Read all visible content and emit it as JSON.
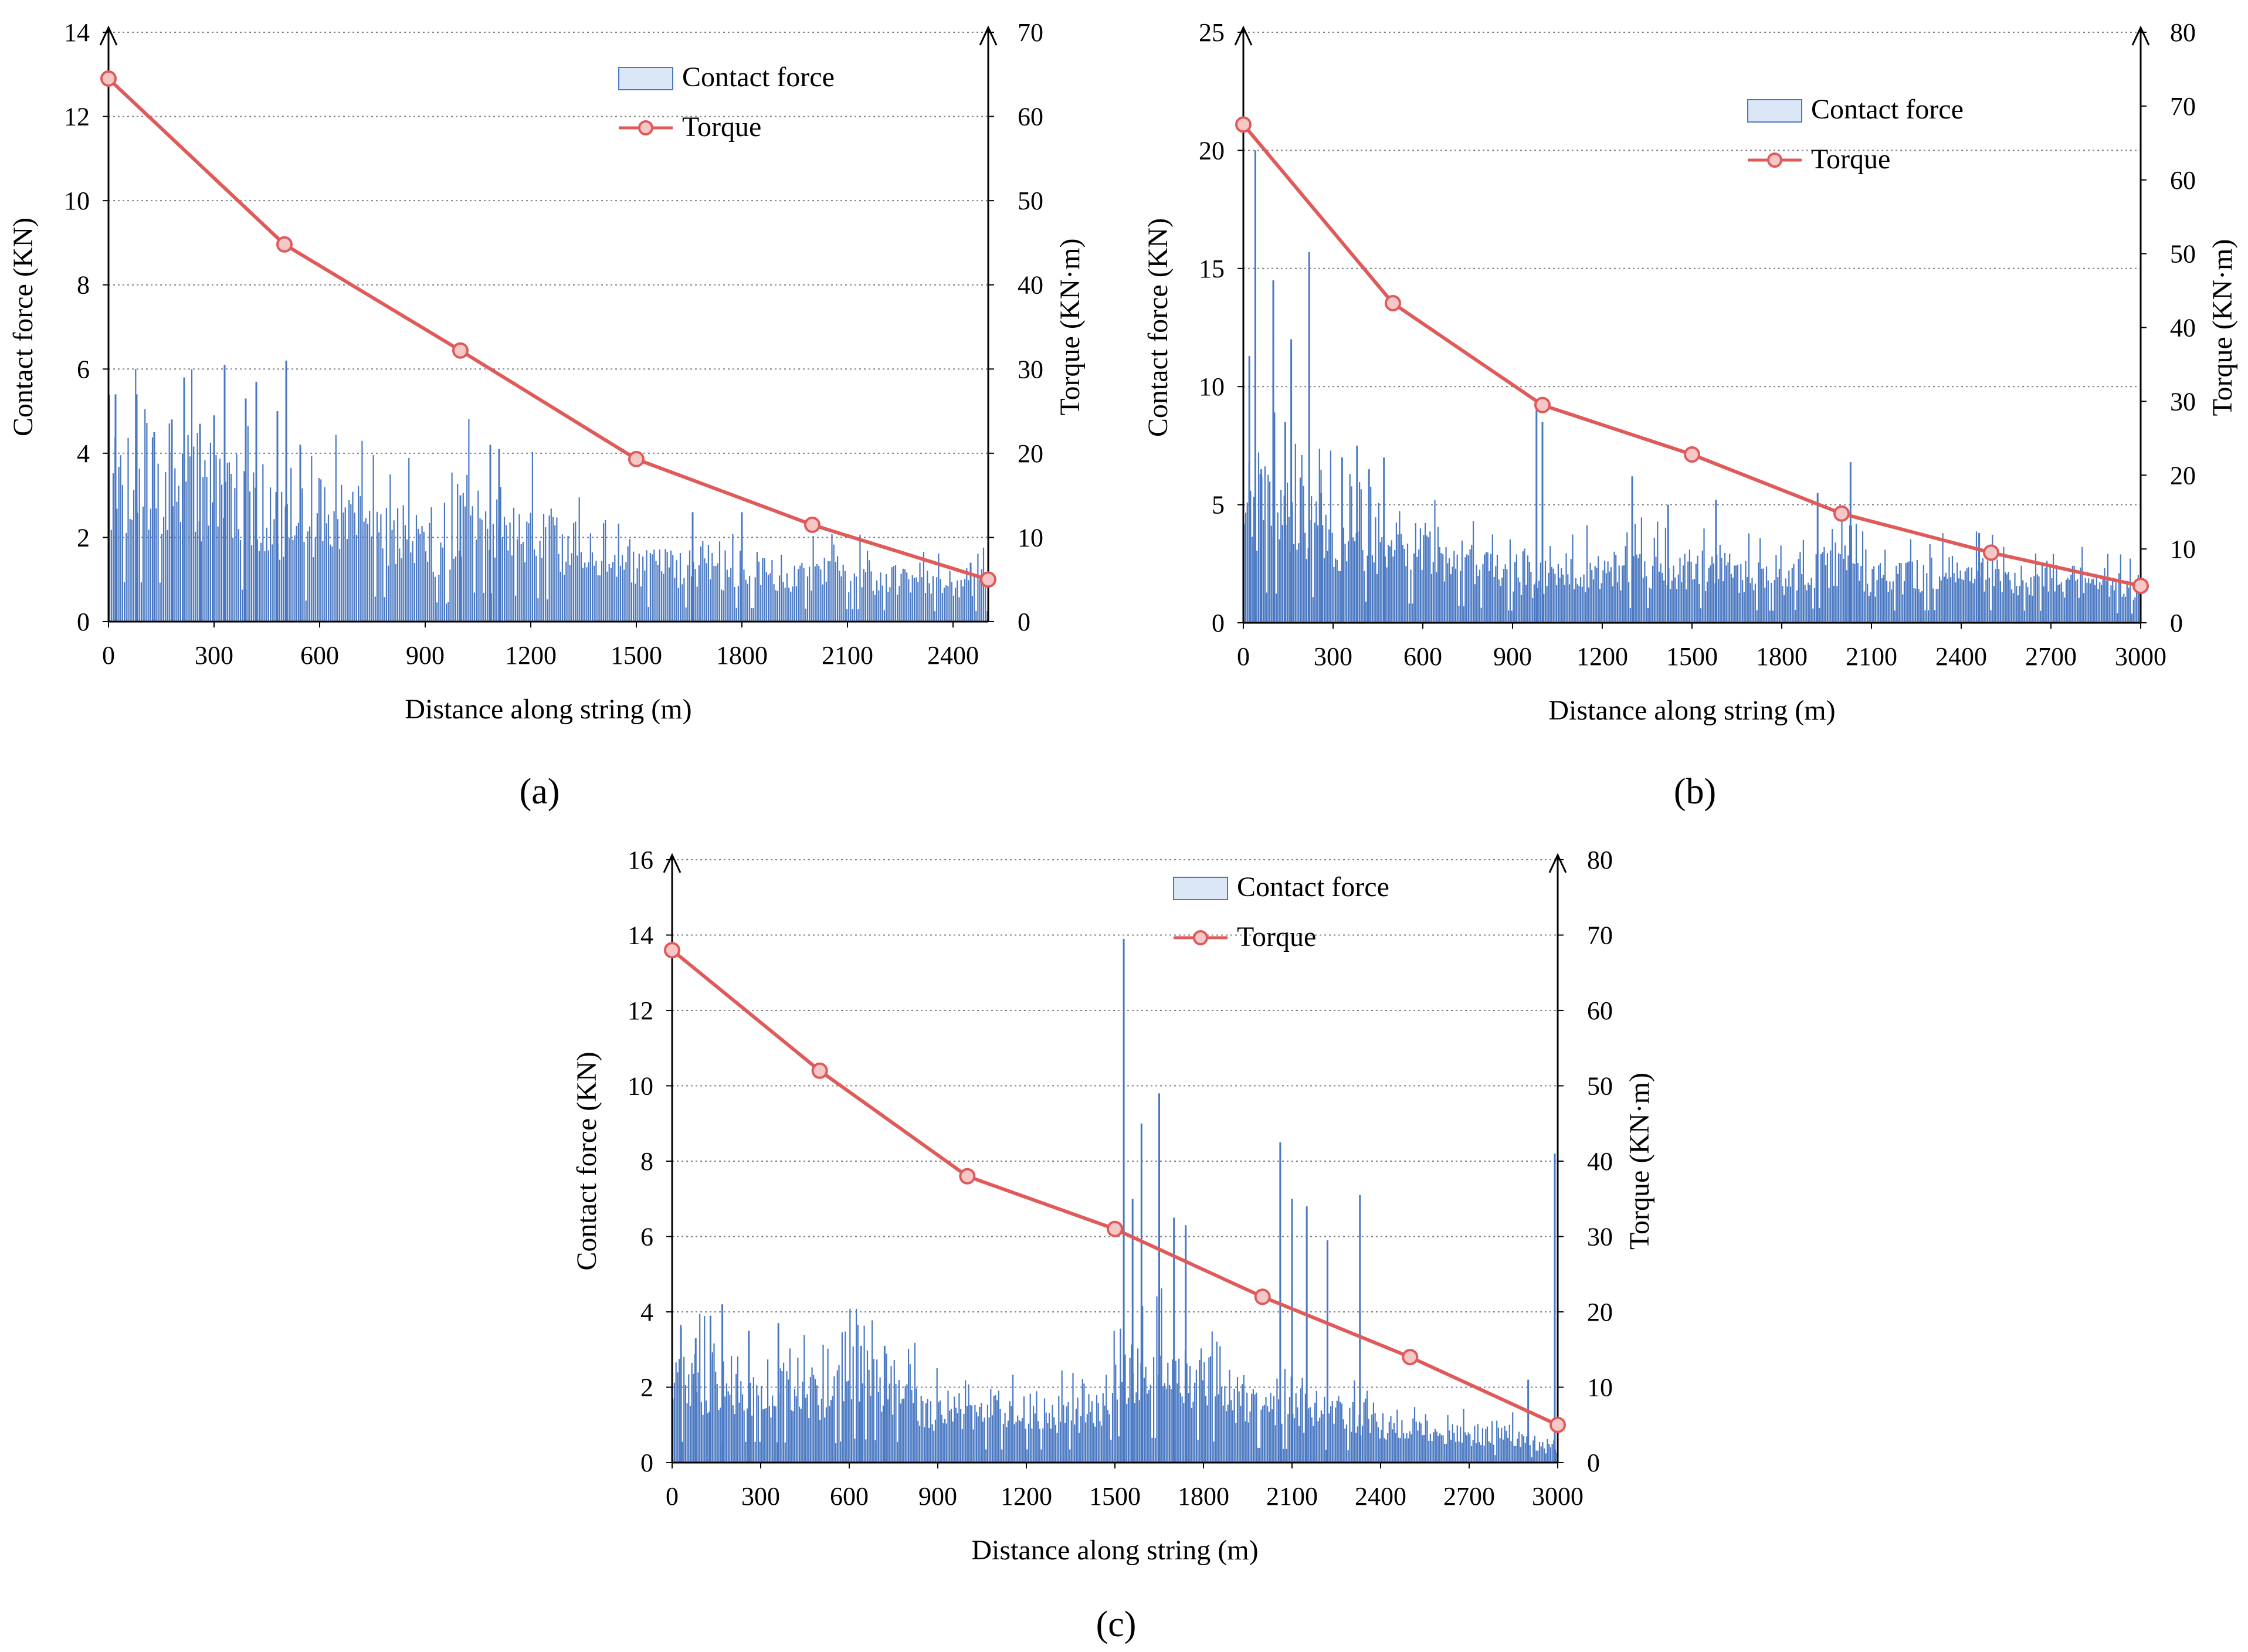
{
  "figure": {
    "panel_labels": [
      "(a)",
      "(b)",
      "(c)"
    ],
    "colors": {
      "bar": "#4a78c2",
      "bar_legend_light": "#dbe6f7",
      "line": "#e05a5a",
      "marker_fill": "#f6c7c7",
      "grid": "#808080",
      "axis": "#000000"
    }
  },
  "chart_data": [
    {
      "type": "bar+line",
      "panel": "(a)",
      "xlabel": "Distance along string (m)",
      "ylabel": "Contact force (KN)",
      "y2label": "Torque (KN·m)",
      "xlim": [
        0,
        2500
      ],
      "xticks": [
        0,
        300,
        600,
        900,
        1200,
        1500,
        1800,
        2100,
        2400
      ],
      "ylim": [
        0,
        14
      ],
      "yticks": [
        0,
        2,
        4,
        6,
        8,
        10,
        12,
        14
      ],
      "y2lim": [
        0,
        70
      ],
      "y2ticks": [
        0,
        10,
        20,
        30,
        40,
        50,
        60,
        70
      ],
      "legend": [
        "Contact force",
        "Torque"
      ],
      "contact_force_profile": [
        [
          0,
          3.8
        ],
        [
          150,
          3.7
        ],
        [
          300,
          3.2
        ],
        [
          450,
          2.9
        ],
        [
          550,
          1.8
        ],
        [
          600,
          2.7
        ],
        [
          850,
          2.2
        ],
        [
          960,
          1.7
        ],
        [
          1000,
          2.8
        ],
        [
          1100,
          2.7
        ],
        [
          1300,
          1.9
        ],
        [
          1500,
          1.4
        ],
        [
          1800,
          1.3
        ],
        [
          2100,
          1.2
        ],
        [
          2300,
          1.0
        ],
        [
          2500,
          1.0
        ]
      ],
      "contact_force_spikes": [
        [
          20,
          5.4
        ],
        [
          80,
          5.4
        ],
        [
          130,
          4.5
        ],
        [
          180,
          4.8
        ],
        [
          215,
          5.8
        ],
        [
          260,
          4.7
        ],
        [
          300,
          4.9
        ],
        [
          330,
          6.1
        ],
        [
          390,
          5.3
        ],
        [
          420,
          5.7
        ],
        [
          480,
          5.0
        ],
        [
          505,
          6.2
        ],
        [
          545,
          4.2
        ],
        [
          1000,
          3.0
        ],
        [
          1085,
          4.2
        ],
        [
          1110,
          4.1
        ],
        [
          1660,
          2.6
        ],
        [
          1800,
          2.6
        ],
        [
          2450,
          1.4
        ]
      ],
      "torque": {
        "x": [
          0,
          500,
          1000,
          1500,
          2000,
          2500
        ],
        "y": [
          64.5,
          44.8,
          32.2,
          19.3,
          11.5,
          5.0
        ]
      }
    },
    {
      "type": "bar+line",
      "panel": "(b)",
      "xlabel": "Distance along string (m)",
      "ylabel": "Contact force (KN)",
      "y2label": "Torque (KN·m)",
      "xlim": [
        0,
        3000
      ],
      "xticks": [
        0,
        300,
        600,
        900,
        1200,
        1500,
        1800,
        2100,
        2400,
        2700,
        3000
      ],
      "ylim": [
        0,
        25
      ],
      "yticks": [
        0,
        5,
        10,
        15,
        20,
        25
      ],
      "y2lim": [
        0,
        80
      ],
      "y2ticks": [
        0,
        10,
        20,
        30,
        40,
        50,
        60,
        70,
        80
      ],
      "legend": [
        "Contact force",
        "Torque"
      ],
      "contact_force_profile": [
        [
          0,
          5.5
        ],
        [
          200,
          4.5
        ],
        [
          400,
          3.6
        ],
        [
          700,
          3.0
        ],
        [
          950,
          1.8
        ],
        [
          1000,
          1.8
        ],
        [
          1200,
          2.5
        ],
        [
          1500,
          2.5
        ],
        [
          1800,
          2.0
        ],
        [
          2000,
          2.8
        ],
        [
          2100,
          2.0
        ],
        [
          2400,
          2.2
        ],
        [
          2700,
          2.0
        ],
        [
          3000,
          1.5
        ]
      ],
      "contact_force_spikes": [
        [
          20,
          11.3
        ],
        [
          40,
          20.0
        ],
        [
          60,
          6.5
        ],
        [
          100,
          14.5
        ],
        [
          140,
          8.5
        ],
        [
          160,
          12.0
        ],
        [
          220,
          15.7
        ],
        [
          260,
          5.5
        ],
        [
          330,
          7.0
        ],
        [
          380,
          7.5
        ],
        [
          420,
          6.5
        ],
        [
          470,
          7.0
        ],
        [
          980,
          9.0
        ],
        [
          1000,
          8.5
        ],
        [
          1300,
          6.2
        ],
        [
          1420,
          5.0
        ],
        [
          1580,
          5.2
        ],
        [
          1920,
          5.5
        ],
        [
          2030,
          6.8
        ],
        [
          2460,
          3.8
        ],
        [
          3000,
          3.8
        ]
      ],
      "torque": {
        "x": [
          0,
          500,
          1000,
          1500,
          2000,
          2500,
          3000
        ],
        "y": [
          67.5,
          43.3,
          29.5,
          22.8,
          14.8,
          9.5,
          5.0
        ]
      }
    },
    {
      "type": "bar+line",
      "panel": "(c)",
      "xlabel": "Distance along string (m)",
      "ylabel": "Contact force (KN)",
      "y2label": "Torque (KN·m)",
      "xlim": [
        0,
        3000
      ],
      "xticks": [
        0,
        300,
        600,
        900,
        1200,
        1500,
        1800,
        2100,
        2400,
        2700,
        3000
      ],
      "ylim": [
        0,
        16
      ],
      "yticks": [
        0,
        2,
        4,
        6,
        8,
        10,
        12,
        14,
        16
      ],
      "y2lim": [
        0,
        80
      ],
      "y2ticks": [
        0,
        10,
        20,
        30,
        40,
        50,
        60,
        70,
        80
      ],
      "legend": [
        "Contact force",
        "Torque"
      ],
      "contact_force_profile": [
        [
          0,
          2.2
        ],
        [
          300,
          2.2
        ],
        [
          550,
          2.0
        ],
        [
          600,
          2.6
        ],
        [
          800,
          2.1
        ],
        [
          850,
          1.4
        ],
        [
          1450,
          1.4
        ],
        [
          1500,
          2.8
        ],
        [
          1800,
          2.4
        ],
        [
          2000,
          1.5
        ],
        [
          2300,
          1.3
        ],
        [
          2600,
          0.8
        ],
        [
          2850,
          0.8
        ],
        [
          3000,
          0.3
        ]
      ],
      "contact_force_spikes": [
        [
          30,
          3.6
        ],
        [
          80,
          3.3
        ],
        [
          130,
          3.9
        ],
        [
          170,
          4.2
        ],
        [
          260,
          3.5
        ],
        [
          360,
          3.7
        ],
        [
          640,
          3.1
        ],
        [
          720,
          3.1
        ],
        [
          1530,
          13.9
        ],
        [
          1560,
          7.0
        ],
        [
          1590,
          9.0
        ],
        [
          1650,
          9.8
        ],
        [
          1700,
          6.5
        ],
        [
          1740,
          6.3
        ],
        [
          2060,
          8.5
        ],
        [
          2100,
          7.0
        ],
        [
          2150,
          6.8
        ],
        [
          2220,
          5.9
        ],
        [
          2330,
          7.1
        ],
        [
          2900,
          2.2
        ],
        [
          2990,
          8.2
        ]
      ],
      "torque": {
        "x": [
          0,
          500,
          1000,
          1500,
          2000,
          2500,
          3000
        ],
        "y": [
          68.0,
          52.0,
          38.0,
          31.0,
          22.0,
          14.0,
          5.0
        ]
      }
    }
  ]
}
